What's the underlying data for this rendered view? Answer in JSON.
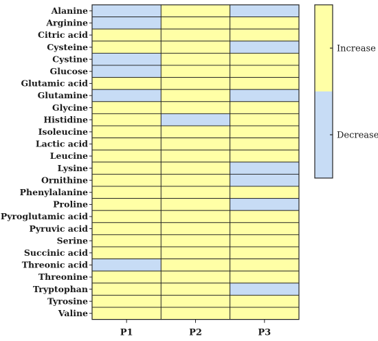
{
  "chart_data": {
    "type": "heatmap",
    "columns": [
      "P1",
      "P2",
      "P3"
    ],
    "rows": [
      {
        "label": "Alanine",
        "values": [
          "Decrease",
          "Increase",
          "Decrease"
        ]
      },
      {
        "label": "Arginine",
        "values": [
          "Decrease",
          "Increase",
          "Increase"
        ]
      },
      {
        "label": "Citric acid",
        "values": [
          "Increase",
          "Increase",
          "Increase"
        ]
      },
      {
        "label": "Cysteine",
        "values": [
          "Increase",
          "Increase",
          "Decrease"
        ]
      },
      {
        "label": "Cystine",
        "values": [
          "Decrease",
          "Increase",
          "Increase"
        ]
      },
      {
        "label": "Glucose",
        "values": [
          "Decrease",
          "Increase",
          "Increase"
        ]
      },
      {
        "label": "Glutamic acid",
        "values": [
          "Increase",
          "Increase",
          "Increase"
        ]
      },
      {
        "label": "Glutamine",
        "values": [
          "Decrease",
          "Increase",
          "Decrease"
        ]
      },
      {
        "label": "Glycine",
        "values": [
          "Increase",
          "Increase",
          "Increase"
        ]
      },
      {
        "label": "Histidine",
        "values": [
          "Increase",
          "Decrease",
          "Increase"
        ]
      },
      {
        "label": "Isoleucine",
        "values": [
          "Increase",
          "Increase",
          "Increase"
        ]
      },
      {
        "label": "Lactic acid",
        "values": [
          "Increase",
          "Increase",
          "Increase"
        ]
      },
      {
        "label": "Leucine",
        "values": [
          "Increase",
          "Increase",
          "Increase"
        ]
      },
      {
        "label": "Lysine",
        "values": [
          "Increase",
          "Increase",
          "Decrease"
        ]
      },
      {
        "label": "Ornithine",
        "values": [
          "Increase",
          "Increase",
          "Decrease"
        ]
      },
      {
        "label": "Phenylalanine",
        "values": [
          "Increase",
          "Increase",
          "Increase"
        ]
      },
      {
        "label": "Proline",
        "values": [
          "Increase",
          "Increase",
          "Decrease"
        ]
      },
      {
        "label": "Pyroglutamic acid",
        "values": [
          "Increase",
          "Increase",
          "Increase"
        ]
      },
      {
        "label": "Pyruvic acid",
        "values": [
          "Increase",
          "Increase",
          "Increase"
        ]
      },
      {
        "label": "Serine",
        "values": [
          "Increase",
          "Increase",
          "Increase"
        ]
      },
      {
        "label": "Succinic acid",
        "values": [
          "Increase",
          "Increase",
          "Increase"
        ]
      },
      {
        "label": "Threonic acid",
        "values": [
          "Decrease",
          "Increase",
          "Increase"
        ]
      },
      {
        "label": "Threonine",
        "values": [
          "Increase",
          "Increase",
          "Increase"
        ]
      },
      {
        "label": "Tryptophan",
        "values": [
          "Increase",
          "Increase",
          "Decrease"
        ]
      },
      {
        "label": "Tyrosine",
        "values": [
          "Increase",
          "Increase",
          "Increase"
        ]
      },
      {
        "label": "Valine",
        "values": [
          "Increase",
          "Increase",
          "Increase"
        ]
      }
    ],
    "legend": {
      "placement": "right",
      "entries": [
        {
          "label": "Increase",
          "color": "#ffffa6"
        },
        {
          "label": "Decrease",
          "color": "#c7dcf5"
        }
      ]
    },
    "title": "",
    "xlabel": "",
    "ylabel": ""
  }
}
